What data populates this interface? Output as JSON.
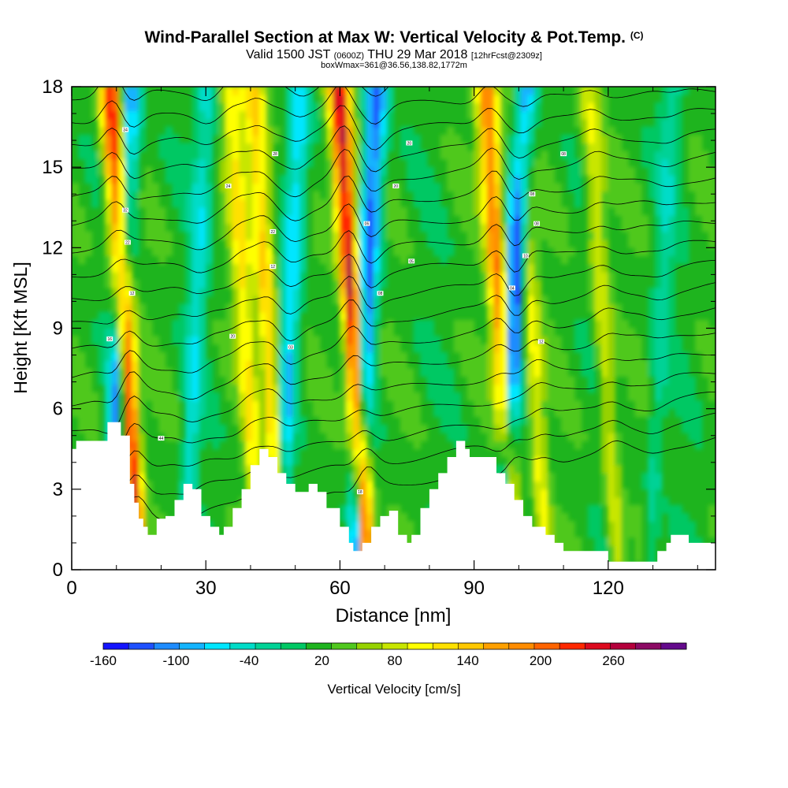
{
  "header": {
    "title": "Wind-Parallel Section at Max W: Vertical Velocity & Pot.Temp.",
    "copyright": "(C)",
    "valid_prefix": "Valid 1500 JST",
    "valid_utc": "(0600Z)",
    "valid_date": "THU 29 Mar 2018",
    "forecast": "[12hrFcst@2309z]",
    "boxmax": "boxWmax=361@36.56,138.82,1772m"
  },
  "chart_data": {
    "type": "heatmap",
    "xlabel": "Distance [nm]",
    "ylabel": "Height [Kft MSL]",
    "xlim": [
      0,
      144
    ],
    "ylim": [
      0,
      18
    ],
    "x_ticks": [
      0,
      30,
      60,
      90,
      120
    ],
    "y_ticks": [
      0,
      3,
      6,
      9,
      12,
      15,
      18
    ],
    "colorbar": {
      "label": "Vertical Velocity [cm/s]",
      "tick_labels": [
        "-160",
        "-100",
        "-40",
        "20",
        "80",
        "140",
        "200",
        "260"
      ],
      "tick_values": [
        -160,
        -100,
        -40,
        20,
        80,
        140,
        200,
        260
      ],
      "min": -160,
      "max": 300,
      "step": 20,
      "colors": [
        "#1414ff",
        "#1e50ff",
        "#1e8cff",
        "#14b4ff",
        "#00e6ff",
        "#00dcc8",
        "#00d296",
        "#00c864",
        "#1eb41e",
        "#50c81e",
        "#96d200",
        "#c8e600",
        "#ffff00",
        "#ffe100",
        "#ffc800",
        "#ffa000",
        "#ff8c00",
        "#ff6400",
        "#ff2800",
        "#dc0a1e",
        "#b4003c",
        "#8c0a64",
        "#640a8c"
      ]
    },
    "updrafts": [
      {
        "x": 13,
        "w": 220
      },
      {
        "x": 45,
        "w": 120
      },
      {
        "x": 64,
        "w": 240
      },
      {
        "x": 97,
        "w": 170
      },
      {
        "x": 40,
        "w": 90
      },
      {
        "x": 104,
        "w": 80
      },
      {
        "x": 120,
        "w": 70
      }
    ],
    "downdrafts": [
      {
        "x": 10,
        "w": -120
      },
      {
        "x": 27,
        "w": -60
      },
      {
        "x": 48,
        "w": -90
      },
      {
        "x": 65,
        "w": -140
      },
      {
        "x": 98,
        "w": -160
      },
      {
        "x": 131,
        "w": -40
      }
    ],
    "terrain_kft": [
      [
        0,
        4.5
      ],
      [
        1,
        4.8
      ],
      [
        6,
        4.8
      ],
      [
        8,
        5.5
      ],
      [
        11,
        5.0
      ],
      [
        13,
        3.2
      ],
      [
        14,
        2.5
      ],
      [
        15,
        1.9
      ],
      [
        16,
        1.6
      ],
      [
        17,
        1.3
      ],
      [
        19,
        1.9
      ],
      [
        21,
        2.0
      ],
      [
        23,
        2.6
      ],
      [
        25,
        3.2
      ],
      [
        27,
        3.0
      ],
      [
        29,
        2.0
      ],
      [
        31,
        1.6
      ],
      [
        33,
        1.3
      ],
      [
        34,
        1.6
      ],
      [
        36,
        2.3
      ],
      [
        38,
        3.0
      ],
      [
        40,
        3.9
      ],
      [
        42,
        4.5
      ],
      [
        44,
        4.2
      ],
      [
        46,
        3.6
      ],
      [
        48,
        3.2
      ],
      [
        50,
        2.9
      ],
      [
        53,
        3.2
      ],
      [
        55,
        2.9
      ],
      [
        57,
        2.3
      ],
      [
        60,
        1.6
      ],
      [
        62,
        1.0
      ],
      [
        63,
        0.7
      ],
      [
        65,
        1.0
      ],
      [
        67,
        1.6
      ],
      [
        69,
        2.0
      ],
      [
        71,
        2.2
      ],
      [
        73,
        1.3
      ],
      [
        75,
        1.0
      ],
      [
        76,
        1.3
      ],
      [
        78,
        2.3
      ],
      [
        80,
        3.0
      ],
      [
        82,
        3.6
      ],
      [
        84,
        4.2
      ],
      [
        86,
        4.8
      ],
      [
        88,
        4.5
      ],
      [
        89,
        4.2
      ],
      [
        93,
        4.2
      ],
      [
        95,
        3.6
      ],
      [
        97,
        3.2
      ],
      [
        99,
        2.6
      ],
      [
        101,
        2.0
      ],
      [
        103,
        1.6
      ],
      [
        106,
        1.3
      ],
      [
        108,
        1.0
      ],
      [
        110,
        0.7
      ],
      [
        114,
        0.7
      ],
      [
        118,
        0.7
      ],
      [
        120,
        0.3
      ],
      [
        130,
        0.3
      ],
      [
        131,
        0.7
      ],
      [
        133,
        1.0
      ],
      [
        134,
        1.3
      ],
      [
        138,
        1.0
      ],
      [
        144,
        1.0
      ]
    ],
    "contour_labels": [
      {
        "x": 12,
        "y": 16.4,
        "text": "34"
      },
      {
        "x": 12,
        "y": 13.4,
        "text": "32"
      },
      {
        "x": 12.5,
        "y": 12.2,
        "text": "22"
      },
      {
        "x": 13.5,
        "y": 10.3,
        "text": "12"
      },
      {
        "x": 8.5,
        "y": 8.6,
        "text": "16"
      },
      {
        "x": 20,
        "y": 4.9,
        "text": "44"
      },
      {
        "x": 35,
        "y": 14.3,
        "text": "24"
      },
      {
        "x": 36,
        "y": 8.7,
        "text": "20"
      },
      {
        "x": 45.5,
        "y": 15.5,
        "text": "28"
      },
      {
        "x": 45,
        "y": 12.6,
        "text": "22"
      },
      {
        "x": 45,
        "y": 11.3,
        "text": "12"
      },
      {
        "x": 49,
        "y": 8.3,
        "text": "03"
      },
      {
        "x": 64.5,
        "y": 2.9,
        "text": "18"
      },
      {
        "x": 66,
        "y": 12.9,
        "text": "06"
      },
      {
        "x": 69,
        "y": 10.3,
        "text": "08"
      },
      {
        "x": 72.5,
        "y": 14.3,
        "text": "20"
      },
      {
        "x": 75.5,
        "y": 15.9,
        "text": "20"
      },
      {
        "x": 76,
        "y": 11.5,
        "text": "05"
      },
      {
        "x": 98.5,
        "y": 10.5,
        "text": "04"
      },
      {
        "x": 101.5,
        "y": 11.7,
        "text": "10"
      },
      {
        "x": 103,
        "y": 14.0,
        "text": "08"
      },
      {
        "x": 104,
        "y": 12.9,
        "text": "08"
      },
      {
        "x": 105,
        "y": 8.5,
        "text": "12"
      },
      {
        "x": 110,
        "y": 15.5,
        "text": "08"
      }
    ]
  }
}
